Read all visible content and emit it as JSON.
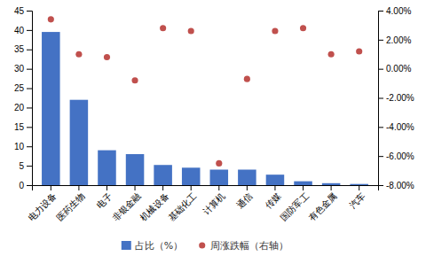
{
  "chart_data": {
    "type": "bar",
    "categories": [
      "电力设备",
      "医药生物",
      "电子",
      "非银金融",
      "机械设备",
      "基础化工",
      "计算机",
      "通信",
      "传媒",
      "国防军工",
      "有色金属",
      "汽车"
    ],
    "series": [
      {
        "name": "占比（%）",
        "type": "bar",
        "color": "#4472C4",
        "axis": "y",
        "values": [
          39.5,
          22.0,
          9.0,
          8.0,
          5.2,
          4.5,
          4.0,
          4.0,
          2.7,
          1.0,
          0.5,
          0.3
        ]
      },
      {
        "name": "周涨跌幅（右轴）",
        "type": "scatter",
        "color": "#C0504D",
        "axis": "y2",
        "marker": "circle",
        "values": [
          0.034,
          0.01,
          0.008,
          -0.008,
          0.028,
          0.026,
          -0.065,
          -0.007,
          0.026,
          0.028,
          0.01,
          0.012
        ]
      }
    ],
    "ylim": [
      0,
      45
    ],
    "yticks": [
      0,
      5,
      10,
      15,
      20,
      25,
      30,
      35,
      40,
      45
    ],
    "y2lim": [
      -0.08,
      0.04
    ],
    "y2ticks": [
      {
        "value": -0.08,
        "label": "-8.00%"
      },
      {
        "value": -0.06,
        "label": "-6.00%"
      },
      {
        "value": -0.04,
        "label": "-4.00%"
      },
      {
        "value": -0.02,
        "label": "-2.00%"
      },
      {
        "value": 0.0,
        "label": "0.00%"
      },
      {
        "value": 0.02,
        "label": "2.00%"
      },
      {
        "value": 0.04,
        "label": "4.00%"
      }
    ],
    "grid": false,
    "legend": "bottom"
  }
}
